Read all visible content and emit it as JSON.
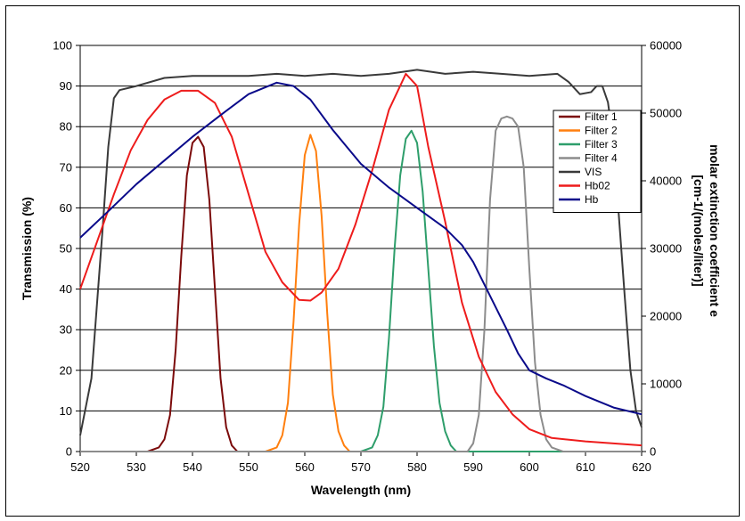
{
  "chart_data": {
    "type": "line",
    "title": "",
    "xlabel": "Wavelength (nm)",
    "ylabel_left": "Transmission (%)",
    "ylabel_right_line1": "molar extinction coefficient e",
    "ylabel_right_line2": "[cm-1/(moles/liter)]",
    "xlim": [
      520,
      620
    ],
    "ylim_left": [
      0,
      100
    ],
    "ylim_right": [
      0,
      60000
    ],
    "x_ticks": [
      "520",
      "530",
      "540",
      "550",
      "560",
      "570",
      "580",
      "590",
      "600",
      "610",
      "620"
    ],
    "y_ticks_left": [
      "0",
      "10",
      "20",
      "30",
      "40",
      "50",
      "60",
      "70",
      "80",
      "90",
      "100"
    ],
    "y_ticks_right": [
      "0",
      "10000",
      "20000",
      "30000",
      "40000",
      "50000",
      "60000"
    ],
    "grid": "horizontal",
    "legend_position": "right",
    "series": [
      {
        "name": "Filter 1",
        "color": "#7b0a0a",
        "axis": "left",
        "points": [
          [
            520,
            0
          ],
          [
            532,
            0
          ],
          [
            534,
            1
          ],
          [
            535,
            3
          ],
          [
            536,
            9
          ],
          [
            537,
            25
          ],
          [
            538,
            48
          ],
          [
            539,
            68
          ],
          [
            540,
            76
          ],
          [
            541,
            77.5
          ],
          [
            542,
            75
          ],
          [
            543,
            62
          ],
          [
            544,
            40
          ],
          [
            545,
            18
          ],
          [
            546,
            6
          ],
          [
            547,
            1.5
          ],
          [
            548,
            0
          ],
          [
            620,
            0
          ]
        ]
      },
      {
        "name": "Filter 2",
        "color": "#ff7f0e",
        "axis": "left",
        "points": [
          [
            520,
            0
          ],
          [
            553,
            0
          ],
          [
            555,
            1
          ],
          [
            556,
            4
          ],
          [
            557,
            12
          ],
          [
            558,
            32
          ],
          [
            559,
            56
          ],
          [
            560,
            73
          ],
          [
            561,
            78
          ],
          [
            562,
            74
          ],
          [
            563,
            58
          ],
          [
            564,
            34
          ],
          [
            565,
            14
          ],
          [
            566,
            5
          ],
          [
            567,
            1.5
          ],
          [
            568,
            0
          ],
          [
            620,
            0
          ]
        ]
      },
      {
        "name": "Filter 3",
        "color": "#2e9e6b",
        "axis": "left",
        "points": [
          [
            520,
            0
          ],
          [
            570,
            0
          ],
          [
            572,
            1
          ],
          [
            573,
            4
          ],
          [
            574,
            11
          ],
          [
            575,
            28
          ],
          [
            576,
            50
          ],
          [
            577,
            68
          ],
          [
            578,
            77
          ],
          [
            579,
            79
          ],
          [
            580,
            76
          ],
          [
            581,
            64
          ],
          [
            582,
            45
          ],
          [
            583,
            26
          ],
          [
            584,
            12
          ],
          [
            585,
            5
          ],
          [
            586,
            1.5
          ],
          [
            587,
            0
          ],
          [
            620,
            0
          ]
        ]
      },
      {
        "name": "Filter 4",
        "color": "#8c8c8c",
        "axis": "left",
        "points": [
          [
            520,
            0
          ],
          [
            589,
            0
          ],
          [
            590,
            2
          ],
          [
            591,
            9
          ],
          [
            592,
            30
          ],
          [
            593,
            62
          ],
          [
            594,
            79
          ],
          [
            595,
            82
          ],
          [
            596,
            82.5
          ],
          [
            597,
            82
          ],
          [
            598,
            80
          ],
          [
            599,
            70
          ],
          [
            600,
            45
          ],
          [
            601,
            22
          ],
          [
            602,
            9
          ],
          [
            603,
            3
          ],
          [
            604,
            1
          ],
          [
            606,
            0
          ],
          [
            620,
            0
          ]
        ]
      },
      {
        "name": "VIS",
        "color": "#3a3a3a",
        "axis": "left",
        "points": [
          [
            520,
            4
          ],
          [
            522,
            18
          ],
          [
            524,
            55
          ],
          [
            525,
            75
          ],
          [
            526,
            87
          ],
          [
            527,
            89
          ],
          [
            530,
            90
          ],
          [
            535,
            92
          ],
          [
            540,
            92.5
          ],
          [
            545,
            92.5
          ],
          [
            550,
            92.5
          ],
          [
            555,
            93
          ],
          [
            560,
            92.5
          ],
          [
            565,
            93
          ],
          [
            570,
            92.5
          ],
          [
            575,
            93
          ],
          [
            580,
            94
          ],
          [
            585,
            93
          ],
          [
            590,
            93.5
          ],
          [
            595,
            93
          ],
          [
            600,
            92.5
          ],
          [
            605,
            93
          ],
          [
            607,
            91
          ],
          [
            609,
            88
          ],
          [
            611,
            88.5
          ],
          [
            612,
            90
          ],
          [
            613,
            90
          ],
          [
            614,
            86
          ],
          [
            615,
            76
          ],
          [
            616,
            57
          ],
          [
            617,
            38
          ],
          [
            618,
            20
          ],
          [
            619,
            10
          ],
          [
            620,
            6
          ]
        ]
      },
      {
        "name": "Hb02",
        "color": "#ee1c1c",
        "axis": "right",
        "points": [
          [
            520,
            24000
          ],
          [
            523,
            31000
          ],
          [
            526,
            38000
          ],
          [
            529,
            44500
          ],
          [
            532,
            49000
          ],
          [
            535,
            52000
          ],
          [
            538,
            53300
          ],
          [
            541,
            53300
          ],
          [
            544,
            51500
          ],
          [
            547,
            46500
          ],
          [
            550,
            38000
          ],
          [
            553,
            29500
          ],
          [
            556,
            25000
          ],
          [
            559,
            22400
          ],
          [
            561,
            22300
          ],
          [
            563,
            23500
          ],
          [
            566,
            27000
          ],
          [
            569,
            33500
          ],
          [
            572,
            41500
          ],
          [
            575,
            50500
          ],
          [
            578,
            55800
          ],
          [
            580,
            54000
          ],
          [
            582,
            45000
          ],
          [
            585,
            34000
          ],
          [
            588,
            22000
          ],
          [
            591,
            14000
          ],
          [
            594,
            8800
          ],
          [
            597,
            5500
          ],
          [
            600,
            3300
          ],
          [
            604,
            2000
          ],
          [
            610,
            1500
          ],
          [
            620,
            900
          ]
        ]
      },
      {
        "name": "Hb",
        "color": "#0a0a8a",
        "axis": "right",
        "points": [
          [
            520,
            31600
          ],
          [
            525,
            35500
          ],
          [
            530,
            39500
          ],
          [
            535,
            43000
          ],
          [
            540,
            46500
          ],
          [
            545,
            49700
          ],
          [
            550,
            52800
          ],
          [
            555,
            54500
          ],
          [
            558,
            54000
          ],
          [
            561,
            52000
          ],
          [
            565,
            47500
          ],
          [
            570,
            42500
          ],
          [
            575,
            39000
          ],
          [
            580,
            36000
          ],
          [
            585,
            33000
          ],
          [
            588,
            30500
          ],
          [
            590,
            28000
          ],
          [
            593,
            23000
          ],
          [
            596,
            18000
          ],
          [
            598,
            14500
          ],
          [
            600,
            12000
          ],
          [
            603,
            10800
          ],
          [
            606,
            9800
          ],
          [
            610,
            8200
          ],
          [
            615,
            6500
          ],
          [
            620,
            5500
          ]
        ]
      }
    ]
  }
}
